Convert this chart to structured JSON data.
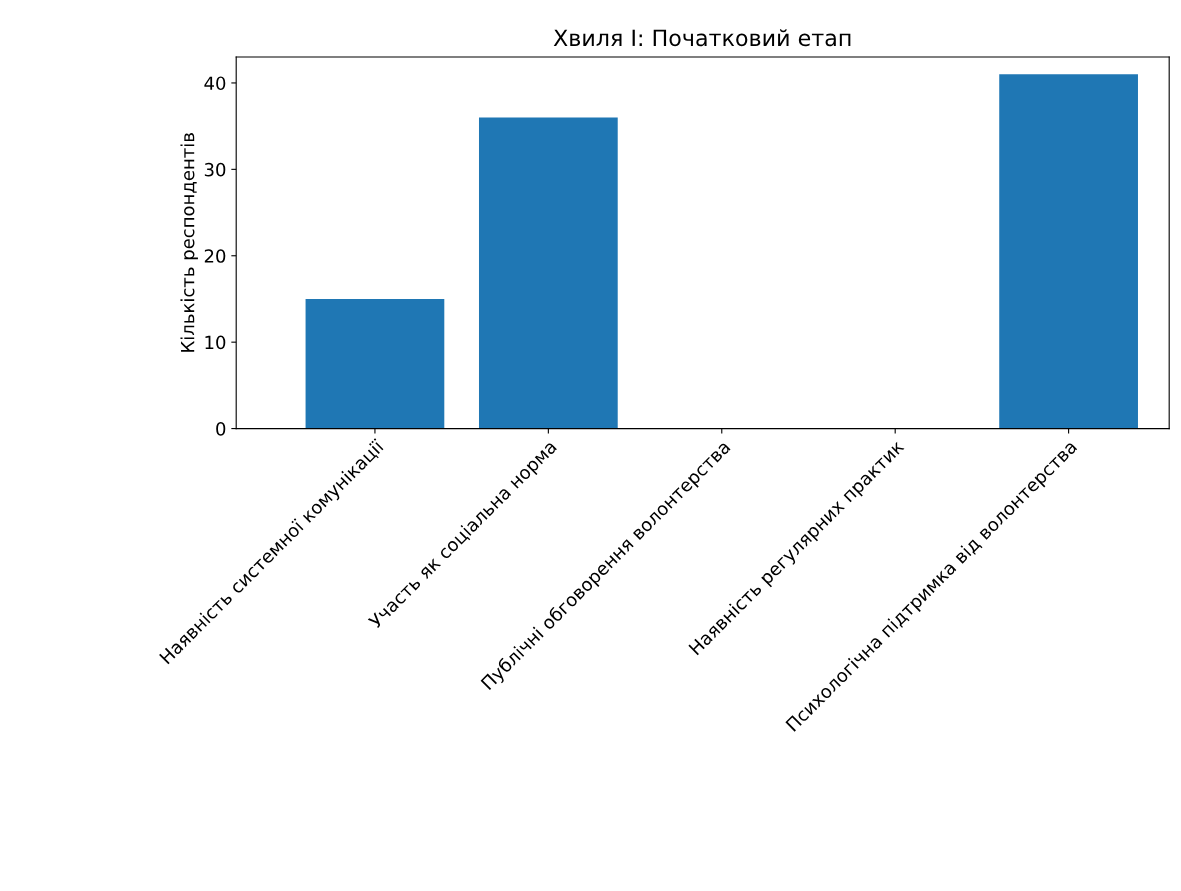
{
  "chart_data": {
    "type": "bar",
    "title": "Хвиля І: Початковий етап",
    "ylabel": "Кількість респондентів",
    "categories": [
      "Наявність системної комунікації",
      "Участь як соціальна норма",
      "Публічні обговорення волонтерства",
      "Наявність регулярних практик",
      "Психологічна підтримка від волонтерства"
    ],
    "values": [
      15,
      36,
      0,
      0,
      41
    ],
    "color": "#1f77b4",
    "ylim": [
      0,
      43
    ],
    "yticks": [
      0,
      10,
      20,
      30,
      40
    ],
    "grid": false,
    "legend": false
  }
}
